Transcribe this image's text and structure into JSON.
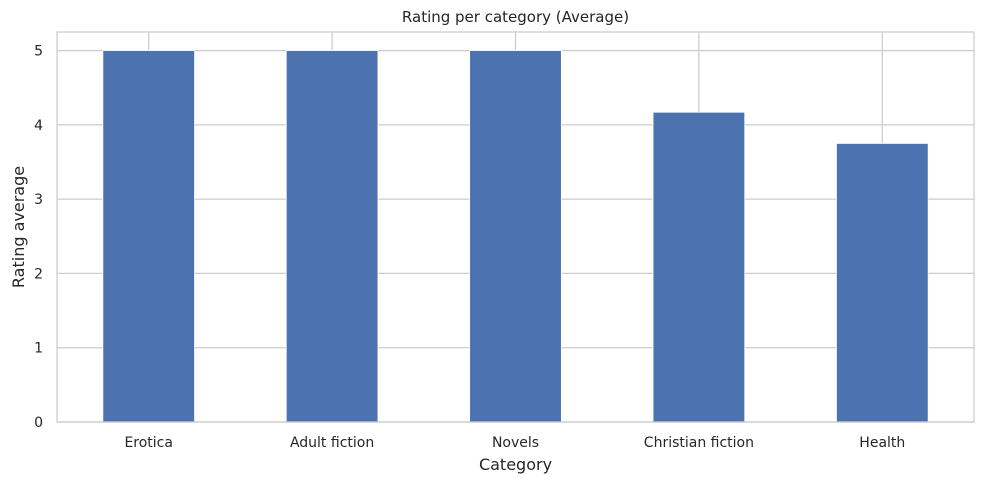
{
  "chart_data": {
    "type": "bar",
    "title": "Rating per category (Average)",
    "xlabel": "Category",
    "ylabel": "Rating average",
    "categories": [
      "Erotica",
      "Adult fiction",
      "Novels",
      "Christian fiction",
      "Health"
    ],
    "values": [
      5.0,
      5.0,
      5.0,
      4.17,
      3.75
    ],
    "yticks": [
      0,
      1,
      2,
      3,
      4,
      5
    ],
    "ylim": [
      0,
      5.25
    ],
    "grid": true,
    "colors": {
      "bar": "#4c72b0",
      "grid": "#cccccc",
      "spine": "#cccccc",
      "text": "#262626",
      "background": "#ffffff"
    }
  }
}
